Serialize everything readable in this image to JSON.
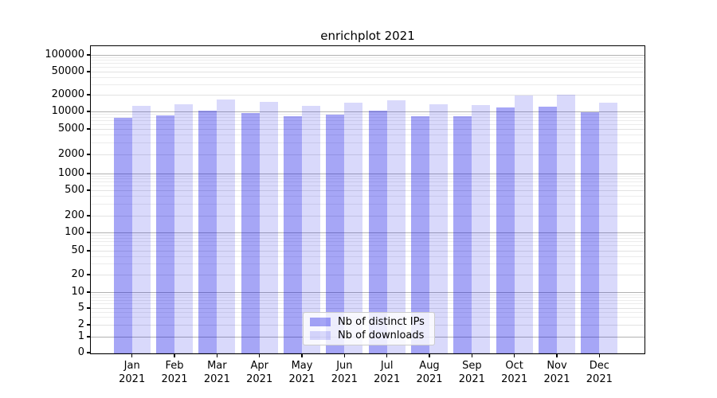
{
  "title": "enrichplot 2021",
  "colors": {
    "background": "#ffffff",
    "axis": "#000000",
    "grid_major": "#b2b2b2",
    "grid_labeled_minor": "#e2e2e2",
    "grid_unlabeled_minor": "#ececec",
    "bar_distinct_ips": "rgba(0,0,230,0.35)",
    "bar_downloads": "rgba(0,0,230,0.15)",
    "legend_border": "#cccccc"
  },
  "chart_data": {
    "type": "bar",
    "title": "enrichplot 2021",
    "categories": [
      "Jan",
      "Feb",
      "Mar",
      "Apr",
      "May",
      "Jun",
      "Jul",
      "Aug",
      "Sep",
      "Oct",
      "Nov",
      "Dec"
    ],
    "category_year": "2021",
    "series": [
      {
        "name": "Nb of distinct IPs",
        "color": "rgba(0,0,230,0.35)",
        "values": [
          7800,
          8500,
          10200,
          9500,
          8400,
          8900,
          10300,
          8200,
          8400,
          11900,
          12300,
          9800
        ]
      },
      {
        "name": "Nb of downloads",
        "color": "rgba(0,0,230,0.15)",
        "values": [
          12700,
          13600,
          16200,
          14700,
          12400,
          14200,
          15900,
          13300,
          13200,
          19400,
          19700,
          14600
        ]
      }
    ],
    "y_axis": {
      "scale": "symlog",
      "ticks": [
        0,
        1,
        2,
        5,
        10,
        20,
        50,
        100,
        200,
        500,
        1000,
        2000,
        5000,
        10000,
        20000,
        50000,
        100000
      ],
      "range": [
        0,
        100000
      ]
    },
    "x_axis": {
      "label": "",
      "tick_format": "month-over-year"
    },
    "legend": {
      "position": "lower center",
      "entries": [
        "Nb of distinct IPs",
        "Nb of downloads"
      ]
    },
    "grid": true
  }
}
